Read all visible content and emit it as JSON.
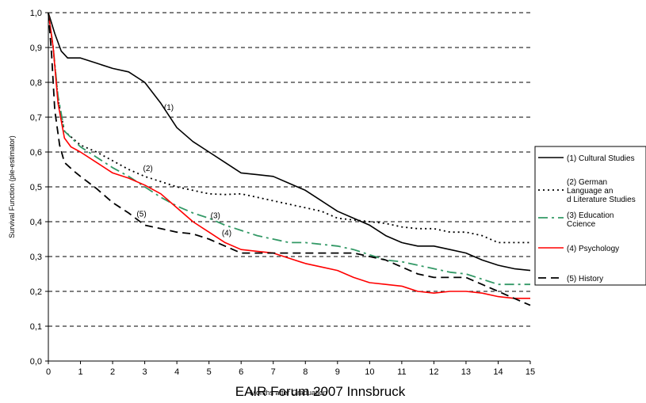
{
  "chart_data": {
    "type": "line",
    "xlabel": "Months after Graduation",
    "ylabel": "Survival Function (ple-estimator)",
    "xlim": [
      0,
      15
    ],
    "ylim": [
      0,
      1
    ],
    "x_ticks": [
      "0",
      "1",
      "2",
      "3",
      "4",
      "5",
      "6",
      "7",
      "8",
      "9",
      "10",
      "11",
      "12",
      "13",
      "14",
      "15"
    ],
    "y_ticks": [
      "0,0",
      "0,1",
      "0,2",
      "0,3",
      "0,4",
      "0,5",
      "0,6",
      "0,7",
      "0,8",
      "0,9",
      "1,0"
    ],
    "grid": true,
    "legend_position": "right",
    "footer": "EAIR Forum 2007 Innsbruck",
    "series": [
      {
        "name": "(1) Cultural Studies",
        "label": "(1)",
        "color": "#000000",
        "dash": "solid",
        "points": [
          [
            0,
            1.0
          ],
          [
            0.2,
            0.94
          ],
          [
            0.4,
            0.89
          ],
          [
            0.6,
            0.87
          ],
          [
            1,
            0.87
          ],
          [
            1.5,
            0.855
          ],
          [
            2,
            0.84
          ],
          [
            2.5,
            0.83
          ],
          [
            3,
            0.8
          ],
          [
            3.5,
            0.74
          ],
          [
            4,
            0.67
          ],
          [
            4.5,
            0.63
          ],
          [
            5,
            0.6
          ],
          [
            5.5,
            0.57
          ],
          [
            6,
            0.54
          ],
          [
            6.5,
            0.535
          ],
          [
            7,
            0.53
          ],
          [
            7.5,
            0.51
          ],
          [
            8,
            0.49
          ],
          [
            8.5,
            0.46
          ],
          [
            9,
            0.43
          ],
          [
            9.5,
            0.41
          ],
          [
            10,
            0.39
          ],
          [
            10.5,
            0.36
          ],
          [
            11,
            0.34
          ],
          [
            11.5,
            0.33
          ],
          [
            12,
            0.33
          ],
          [
            12.5,
            0.32
          ],
          [
            13,
            0.31
          ],
          [
            13.5,
            0.29
          ],
          [
            14,
            0.275
          ],
          [
            14.5,
            0.265
          ],
          [
            15,
            0.26
          ]
        ]
      },
      {
        "name": "(2) German Language and Literature Studies",
        "label": "(2)",
        "color": "#000000",
        "dash": "dotted",
        "points": [
          [
            0,
            1.0
          ],
          [
            0.15,
            0.9
          ],
          [
            0.3,
            0.75
          ],
          [
            0.5,
            0.66
          ],
          [
            1,
            0.62
          ],
          [
            1.5,
            0.6
          ],
          [
            2,
            0.575
          ],
          [
            2.5,
            0.55
          ],
          [
            3,
            0.53
          ],
          [
            3.5,
            0.515
          ],
          [
            4,
            0.5
          ],
          [
            4.5,
            0.49
          ],
          [
            5,
            0.48
          ],
          [
            5.5,
            0.478
          ],
          [
            6,
            0.48
          ],
          [
            6.5,
            0.47
          ],
          [
            7,
            0.46
          ],
          [
            7.5,
            0.45
          ],
          [
            8,
            0.44
          ],
          [
            8.5,
            0.43
          ],
          [
            9,
            0.41
          ],
          [
            9.5,
            0.405
          ],
          [
            10,
            0.4
          ],
          [
            10.5,
            0.395
          ],
          [
            11,
            0.385
          ],
          [
            11.5,
            0.38
          ],
          [
            12,
            0.38
          ],
          [
            12.5,
            0.37
          ],
          [
            13,
            0.37
          ],
          [
            13.5,
            0.36
          ],
          [
            14,
            0.34
          ],
          [
            14.5,
            0.34
          ],
          [
            15,
            0.34
          ]
        ]
      },
      {
        "name": "(3) Education Ccience",
        "label": "(3)",
        "color": "#339966",
        "dash": "dashdot",
        "points": [
          [
            0,
            1.0
          ],
          [
            0.15,
            0.9
          ],
          [
            0.3,
            0.76
          ],
          [
            0.5,
            0.66
          ],
          [
            1,
            0.615
          ],
          [
            1.5,
            0.585
          ],
          [
            2,
            0.555
          ],
          [
            2.5,
            0.53
          ],
          [
            3,
            0.5
          ],
          [
            3.5,
            0.47
          ],
          [
            4,
            0.445
          ],
          [
            4.5,
            0.425
          ],
          [
            5,
            0.41
          ],
          [
            5.5,
            0.39
          ],
          [
            6,
            0.375
          ],
          [
            6.5,
            0.36
          ],
          [
            7,
            0.35
          ],
          [
            7.5,
            0.34
          ],
          [
            8,
            0.34
          ],
          [
            8.5,
            0.335
          ],
          [
            9,
            0.33
          ],
          [
            9.5,
            0.32
          ],
          [
            10,
            0.305
          ],
          [
            10.5,
            0.29
          ],
          [
            11,
            0.285
          ],
          [
            11.5,
            0.275
          ],
          [
            12,
            0.265
          ],
          [
            12.5,
            0.255
          ],
          [
            13,
            0.25
          ],
          [
            13.5,
            0.235
          ],
          [
            14,
            0.22
          ],
          [
            14.5,
            0.22
          ],
          [
            15,
            0.22
          ]
        ]
      },
      {
        "name": "(4) Psychology",
        "label": "(4)",
        "color": "#ff0000",
        "dash": "solid",
        "points": [
          [
            0,
            1.0
          ],
          [
            0.15,
            0.9
          ],
          [
            0.3,
            0.74
          ],
          [
            0.5,
            0.64
          ],
          [
            0.7,
            0.615
          ],
          [
            1,
            0.6
          ],
          [
            1.5,
            0.57
          ],
          [
            2,
            0.54
          ],
          [
            2.5,
            0.525
          ],
          [
            3,
            0.505
          ],
          [
            3.5,
            0.48
          ],
          [
            4,
            0.44
          ],
          [
            4.5,
            0.4
          ],
          [
            5,
            0.37
          ],
          [
            5.5,
            0.34
          ],
          [
            6,
            0.32
          ],
          [
            6.5,
            0.315
          ],
          [
            7,
            0.31
          ],
          [
            7.5,
            0.295
          ],
          [
            8,
            0.28
          ],
          [
            8.5,
            0.27
          ],
          [
            9,
            0.26
          ],
          [
            9.5,
            0.24
          ],
          [
            10,
            0.225
          ],
          [
            10.5,
            0.22
          ],
          [
            11,
            0.215
          ],
          [
            11.5,
            0.2
          ],
          [
            12,
            0.195
          ],
          [
            12.5,
            0.2
          ],
          [
            13,
            0.2
          ],
          [
            13.5,
            0.195
          ],
          [
            14,
            0.185
          ],
          [
            14.5,
            0.18
          ],
          [
            15,
            0.18
          ]
        ]
      },
      {
        "name": "(5) History",
        "label": "(5)",
        "color": "#000000",
        "dash": "dashed",
        "points": [
          [
            0,
            1.0
          ],
          [
            0.1,
            0.88
          ],
          [
            0.2,
            0.72
          ],
          [
            0.35,
            0.62
          ],
          [
            0.5,
            0.57
          ],
          [
            0.8,
            0.545
          ],
          [
            1,
            0.53
          ],
          [
            1.5,
            0.495
          ],
          [
            2,
            0.455
          ],
          [
            2.5,
            0.425
          ],
          [
            3,
            0.39
          ],
          [
            3.5,
            0.38
          ],
          [
            4,
            0.37
          ],
          [
            4.5,
            0.365
          ],
          [
            5,
            0.35
          ],
          [
            5.5,
            0.33
          ],
          [
            6,
            0.31
          ],
          [
            6.5,
            0.31
          ],
          [
            7,
            0.31
          ],
          [
            7.5,
            0.31
          ],
          [
            8,
            0.31
          ],
          [
            8.5,
            0.31
          ],
          [
            9,
            0.31
          ],
          [
            9.5,
            0.31
          ],
          [
            10,
            0.3
          ],
          [
            10.5,
            0.29
          ],
          [
            11,
            0.27
          ],
          [
            11.5,
            0.25
          ],
          [
            12,
            0.24
          ],
          [
            12.5,
            0.24
          ],
          [
            13,
            0.24
          ],
          [
            13.5,
            0.22
          ],
          [
            14,
            0.2
          ],
          [
            14.5,
            0.18
          ],
          [
            15,
            0.16
          ]
        ]
      }
    ]
  }
}
